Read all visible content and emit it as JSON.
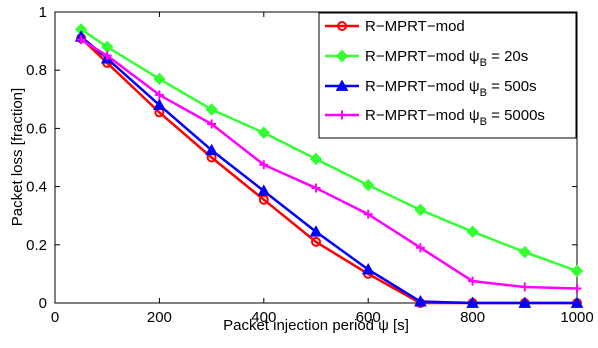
{
  "chart_data": {
    "type": "line",
    "xlabel": "Packet injection period ψ [s]",
    "ylabel": "Packet loss [fraction]",
    "xlim": [
      0,
      1000
    ],
    "ylim": [
      0,
      1
    ],
    "xticks": [
      "0",
      "200",
      "400",
      "600",
      "800",
      "1000"
    ],
    "yticks": [
      "0",
      "0.2",
      "0.4",
      "0.6",
      "0.8",
      "1"
    ],
    "grid": false,
    "legend_position": "top-right",
    "series": [
      {
        "name": "R−MPRT−mod",
        "legend_main": "R−MPRT−mod",
        "legend_sub": "",
        "legend_tail": "",
        "color": "#ff0000",
        "marker": "circle",
        "x": [
          50,
          100,
          200,
          300,
          400,
          500,
          600,
          700,
          800,
          900,
          1000
        ],
        "y": [
          0.91,
          0.825,
          0.655,
          0.5,
          0.355,
          0.21,
          0.1,
          0.0,
          0.0,
          0.0,
          0.0
        ]
      },
      {
        "name": "R−MPRT−mod ψB = 20s",
        "legend_main": "R−MPRT−mod ψ",
        "legend_sub": "B",
        "legend_tail": " = 20s",
        "color": "#33ff33",
        "marker": "diamond",
        "x": [
          50,
          100,
          200,
          300,
          400,
          500,
          600,
          700,
          800,
          900,
          1000
        ],
        "y": [
          0.94,
          0.88,
          0.77,
          0.665,
          0.585,
          0.495,
          0.405,
          0.32,
          0.245,
          0.175,
          0.11
        ]
      },
      {
        "name": "R−MPRT−mod ψB = 500s",
        "legend_main": "R−MPRT−mod ψ",
        "legend_sub": "B",
        "legend_tail": " = 500s",
        "color": "#0000ff",
        "marker": "triangle",
        "x": [
          50,
          100,
          200,
          300,
          400,
          500,
          600,
          700,
          800,
          900,
          1000
        ],
        "y": [
          0.915,
          0.84,
          0.68,
          0.525,
          0.385,
          0.245,
          0.115,
          0.005,
          0.0,
          0.0,
          0.0
        ]
      },
      {
        "name": "R−MPRT−mod ψB = 5000s",
        "legend_main": "R−MPRT−mod ψ",
        "legend_sub": "B",
        "legend_tail": " = 5000s",
        "color": "#ff00ff",
        "marker": "plus",
        "x": [
          50,
          100,
          200,
          300,
          400,
          500,
          600,
          700,
          800,
          900,
          1000
        ],
        "y": [
          0.905,
          0.85,
          0.715,
          0.615,
          0.475,
          0.395,
          0.305,
          0.19,
          0.075,
          0.055,
          0.05
        ]
      }
    ]
  }
}
